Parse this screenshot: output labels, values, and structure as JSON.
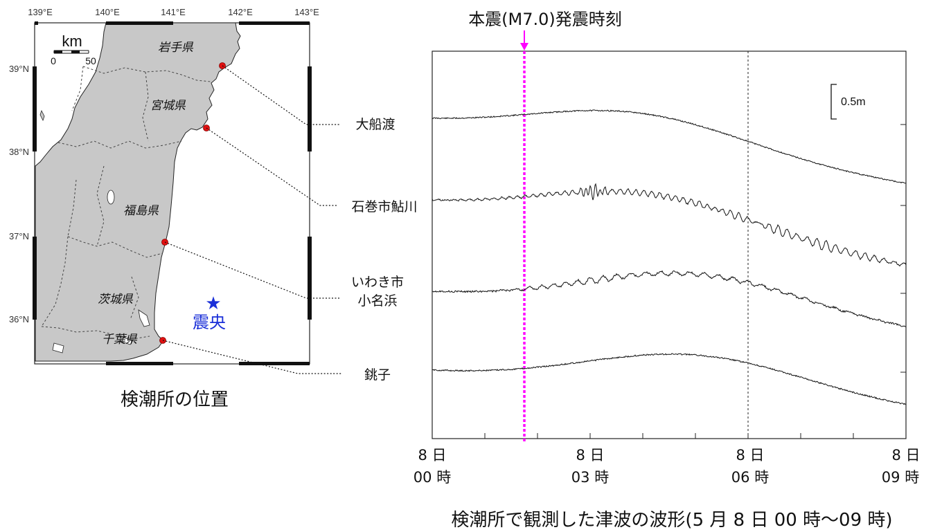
{
  "map": {
    "lon_labels": [
      "139°E",
      "140°E",
      "141°E",
      "142°E",
      "143°E"
    ],
    "lat_labels": [
      "39°N",
      "38°N",
      "37°N",
      "36°N"
    ],
    "scale_unit": "km",
    "scale_ticks": [
      "0",
      "50"
    ],
    "prefectures": [
      "岩手県",
      "宮城県",
      "福島県",
      "茨城県",
      "千葉県"
    ],
    "epicenter_symbol": "★",
    "epicenter_label": "震央",
    "caption": "検潮所の位置",
    "colors": {
      "land": "#c8c8c8",
      "sea": "#ffffff",
      "station": "#e01010",
      "epicenter": "#1a2fd8"
    }
  },
  "stations": [
    {
      "label": "大船渡"
    },
    {
      "label": "石巻市鮎川"
    },
    {
      "label_line1": "いわき市",
      "label_line2": "小名浜"
    },
    {
      "label": "銚子"
    }
  ],
  "waveform": {
    "mainshock_label": "本震(M7.0)発震時刻",
    "mainshock_color": "#ff00ff",
    "scale_label": "0.5m",
    "x_ticks": [
      {
        "line1": "8 日",
        "line2": "00 時"
      },
      {
        "line1": "8 日",
        "line2": "03 時"
      },
      {
        "line1": "8 日",
        "line2": "06 時"
      },
      {
        "line1": "8 日",
        "line2": "09 時"
      }
    ],
    "caption": "検潮所で観測した津波の波形(5 月 8 日 00 時～09 時)"
  }
}
